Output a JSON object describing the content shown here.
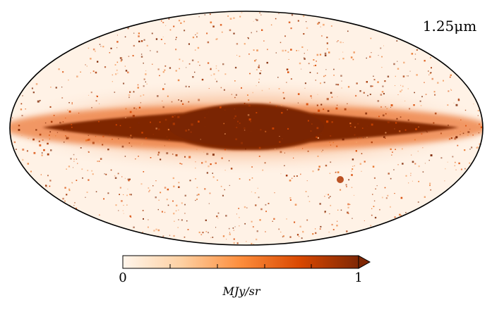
{
  "map": {
    "projection": "mollweide",
    "band_label": "1.25μm",
    "unit_label": "MJy/sr",
    "colorbar": {
      "min_label": "0",
      "max_label": "1",
      "min_value": 0,
      "max_value": 1,
      "extend": "max",
      "colormap": [
        "#fff5eb",
        "#fdd0a2",
        "#fd8d3c",
        "#d94801",
        "#7f2704"
      ]
    },
    "features": {
      "galactic_plane_color": "#7f2704",
      "background_color": "#fff2e6"
    }
  }
}
